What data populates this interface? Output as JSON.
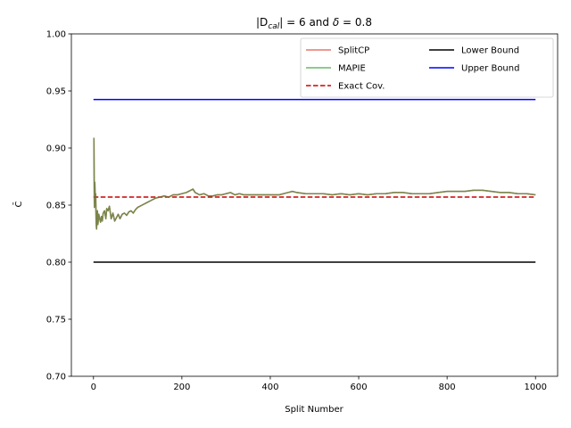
{
  "chart_data": {
    "type": "line",
    "title": "|D_cal| = 6 and δ = 0.8",
    "title_parts": {
      "prefix": "|D",
      "sub": "cal",
      "mid": "| = 6 and ",
      "delta": "δ",
      "suffix": " = 0.8"
    },
    "xlabel": "Split Number",
    "ylabel": "C̄",
    "xlim": [
      -50,
      1050
    ],
    "ylim": [
      0.7,
      1.0
    ],
    "x_ticks": [
      0,
      200,
      400,
      600,
      800,
      1000
    ],
    "x_tick_labels": [
      "0",
      "200",
      "400",
      "600",
      "800",
      "1000"
    ],
    "y_ticks": [
      0.7,
      0.75,
      0.8,
      0.85,
      0.9,
      0.95,
      1.0
    ],
    "y_tick_labels": [
      "0.70",
      "0.75",
      "0.80",
      "0.85",
      "0.90",
      "0.95",
      "1.00"
    ],
    "grid": false,
    "legend_position": "top-right",
    "series": [
      {
        "name": "SplitCP",
        "color": "#e8766c",
        "style": "solid",
        "x": [
          1,
          2,
          3,
          4,
          5,
          6,
          7,
          8,
          9,
          10,
          12,
          14,
          16,
          18,
          20,
          22,
          25,
          28,
          30,
          33,
          36,
          40,
          44,
          48,
          52,
          56,
          60,
          65,
          70,
          75,
          80,
          85,
          90,
          95,
          100,
          110,
          120,
          130,
          140,
          150,
          160,
          170,
          180,
          190,
          200,
          210,
          220,
          225,
          230,
          240,
          250,
          260,
          270,
          280,
          290,
          300,
          310,
          320,
          330,
          340,
          350,
          360,
          380,
          400,
          420,
          440,
          450,
          460,
          480,
          500,
          520,
          540,
          560,
          580,
          600,
          620,
          640,
          660,
          680,
          700,
          720,
          740,
          760,
          780,
          800,
          820,
          840,
          860,
          880,
          900,
          920,
          940,
          960,
          980,
          1000
        ],
        "y": [
          0.909,
          0.848,
          0.87,
          0.855,
          0.86,
          0.835,
          0.829,
          0.84,
          0.845,
          0.833,
          0.842,
          0.838,
          0.835,
          0.84,
          0.836,
          0.843,
          0.845,
          0.838,
          0.847,
          0.845,
          0.849,
          0.838,
          0.843,
          0.836,
          0.839,
          0.842,
          0.838,
          0.842,
          0.843,
          0.841,
          0.844,
          0.845,
          0.843,
          0.846,
          0.848,
          0.85,
          0.852,
          0.854,
          0.856,
          0.857,
          0.858,
          0.857,
          0.859,
          0.859,
          0.86,
          0.861,
          0.863,
          0.864,
          0.861,
          0.859,
          0.86,
          0.858,
          0.858,
          0.859,
          0.859,
          0.86,
          0.861,
          0.859,
          0.86,
          0.859,
          0.859,
          0.859,
          0.859,
          0.859,
          0.859,
          0.861,
          0.862,
          0.861,
          0.86,
          0.86,
          0.86,
          0.859,
          0.86,
          0.859,
          0.86,
          0.859,
          0.86,
          0.86,
          0.861,
          0.861,
          0.86,
          0.86,
          0.86,
          0.861,
          0.862,
          0.862,
          0.862,
          0.863,
          0.863,
          0.862,
          0.861,
          0.861,
          0.86,
          0.86,
          0.859
        ]
      },
      {
        "name": "MAPIE",
        "color": "#6cb86c",
        "style": "solid",
        "x": [
          1,
          2,
          3,
          4,
          5,
          6,
          7,
          8,
          9,
          10,
          12,
          14,
          16,
          18,
          20,
          22,
          25,
          28,
          30,
          33,
          36,
          40,
          44,
          48,
          52,
          56,
          60,
          65,
          70,
          75,
          80,
          85,
          90,
          95,
          100,
          110,
          120,
          130,
          140,
          150,
          160,
          170,
          180,
          190,
          200,
          210,
          220,
          225,
          230,
          240,
          250,
          260,
          270,
          280,
          290,
          300,
          310,
          320,
          330,
          340,
          350,
          360,
          380,
          400,
          420,
          440,
          450,
          460,
          480,
          500,
          520,
          540,
          560,
          580,
          600,
          620,
          640,
          660,
          680,
          700,
          720,
          740,
          760,
          780,
          800,
          820,
          840,
          860,
          880,
          900,
          920,
          940,
          960,
          980,
          1000
        ],
        "y": [
          0.909,
          0.848,
          0.87,
          0.855,
          0.86,
          0.835,
          0.829,
          0.84,
          0.845,
          0.833,
          0.842,
          0.838,
          0.835,
          0.84,
          0.836,
          0.843,
          0.845,
          0.838,
          0.847,
          0.845,
          0.849,
          0.838,
          0.843,
          0.836,
          0.839,
          0.842,
          0.838,
          0.842,
          0.843,
          0.841,
          0.844,
          0.845,
          0.843,
          0.846,
          0.848,
          0.85,
          0.852,
          0.854,
          0.856,
          0.857,
          0.858,
          0.857,
          0.859,
          0.859,
          0.86,
          0.861,
          0.863,
          0.864,
          0.861,
          0.859,
          0.86,
          0.858,
          0.858,
          0.859,
          0.859,
          0.86,
          0.861,
          0.859,
          0.86,
          0.859,
          0.859,
          0.859,
          0.859,
          0.859,
          0.859,
          0.861,
          0.862,
          0.861,
          0.86,
          0.86,
          0.86,
          0.859,
          0.86,
          0.859,
          0.86,
          0.859,
          0.86,
          0.86,
          0.861,
          0.861,
          0.86,
          0.86,
          0.86,
          0.861,
          0.862,
          0.862,
          0.862,
          0.863,
          0.863,
          0.862,
          0.861,
          0.861,
          0.86,
          0.86,
          0.859
        ]
      },
      {
        "name": "Exact Cov.",
        "color": "#cc0000",
        "style": "dashed",
        "x": [
          0,
          1000
        ],
        "y": [
          0.857,
          0.857
        ]
      },
      {
        "name": "Lower Bound",
        "color": "#000000",
        "style": "solid",
        "x": [
          0,
          1000
        ],
        "y": [
          0.8,
          0.8
        ]
      },
      {
        "name": "Upper Bound",
        "color": "#0000ff",
        "style": "solid",
        "x": [
          0,
          1000
        ],
        "y": [
          0.9425,
          0.9425
        ]
      }
    ],
    "legend_columns": [
      [
        "SplitCP",
        "MAPIE",
        "Exact Cov."
      ],
      [
        "Lower Bound",
        "Upper Bound"
      ]
    ]
  }
}
